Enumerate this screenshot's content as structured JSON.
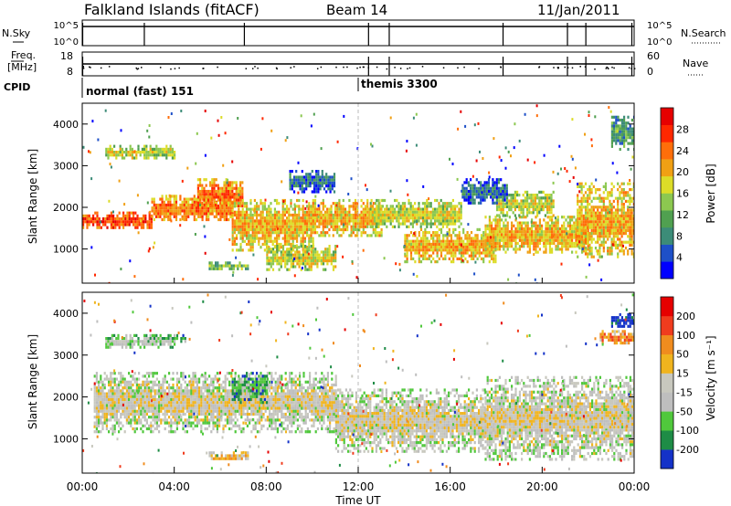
{
  "header": {
    "title": "Falkland Islands (fitACF)",
    "beam": "Beam 14",
    "date": "11/Jan/2011"
  },
  "side_labels": {
    "nsky": "N.Sky",
    "freq": "Freq.",
    "freq_unit": "[MHz]",
    "cpid": "CPID",
    "nsearch": "N.Search",
    "nave": "Nave"
  },
  "cpid_modes": [
    {
      "label": "normal (fast) 151",
      "start_hour": 0.0
    },
    {
      "label": "themis 3300",
      "start_hour": 12.0
    }
  ],
  "chart_data": [
    {
      "type": "line",
      "name": "noise_panel",
      "left_axis": {
        "ticks": [
          "10^5",
          "10^0"
        ]
      },
      "right_axis": {
        "ticks": [
          "10^5",
          "10^0"
        ]
      },
      "spikes_hours": [
        0.02,
        2.7,
        7.05,
        12.45,
        13.35,
        18.3,
        21.1,
        21.9,
        23.9
      ]
    },
    {
      "type": "scatter",
      "name": "freq_nave_panel",
      "left_axis": {
        "ticks": [
          "18",
          "8"
        ]
      },
      "right_axis": {
        "ticks": [
          "60",
          "0"
        ]
      },
      "spikes_hours": [
        0.02,
        12.45,
        13.35,
        18.3,
        21.1,
        21.9,
        23.9
      ]
    },
    {
      "type": "heatmap",
      "name": "power",
      "ylabel": "Slant Range [km]",
      "yticks": [
        1000,
        2000,
        3000,
        4000
      ],
      "ylim": [
        180,
        4500
      ],
      "xlim": [
        0,
        24
      ],
      "colorbar": {
        "label": "Power [dB]",
        "ticks": [
          "4",
          "8",
          "12",
          "16",
          "20",
          "24",
          "28"
        ],
        "colors": [
          "#0000ff",
          "#1e50c8",
          "#3c8c78",
          "#50a050",
          "#8cc850",
          "#dcdc28",
          "#f0a014",
          "#ff6e0a",
          "#ff2800",
          "#e60000"
        ]
      },
      "bands": [
        {
          "x": [
            0.0,
            3.0
          ],
          "y": [
            1500,
            1900
          ],
          "level": 8
        },
        {
          "x": [
            1.0,
            4.0
          ],
          "y": [
            3200,
            3500
          ],
          "level": 5
        },
        {
          "x": [
            3.0,
            6.5
          ],
          "y": [
            1700,
            2300
          ],
          "level": 7
        },
        {
          "x": [
            5.0,
            7.0
          ],
          "y": [
            2000,
            2700
          ],
          "level": 7
        },
        {
          "x": [
            6.5,
            10.0
          ],
          "y": [
            1000,
            2200
          ],
          "level": 6
        },
        {
          "x": [
            5.5,
            7.2
          ],
          "y": [
            500,
            700
          ],
          "level": 4
        },
        {
          "x": [
            8.0,
            11.0
          ],
          "y": [
            500,
            1100
          ],
          "level": 5
        },
        {
          "x": [
            10.0,
            13.0
          ],
          "y": [
            1300,
            2200
          ],
          "level": 6
        },
        {
          "x": [
            12.5,
            16.5
          ],
          "y": [
            1500,
            2200
          ],
          "level": 5
        },
        {
          "x": [
            14.0,
            18.0
          ],
          "y": [
            700,
            1500
          ],
          "level": 6
        },
        {
          "x": [
            17.5,
            22.0
          ],
          "y": [
            900,
            1800
          ],
          "level": 6
        },
        {
          "x": [
            18.0,
            20.5
          ],
          "y": [
            1800,
            2400
          ],
          "level": 5
        },
        {
          "x": [
            21.5,
            24.0
          ],
          "y": [
            800,
            2600
          ],
          "level": 6
        },
        {
          "x": [
            23.0,
            24.0
          ],
          "y": [
            3400,
            4200
          ],
          "level": 3
        },
        {
          "x": [
            16.5,
            18.5
          ],
          "y": [
            2100,
            2700
          ],
          "level": 2
        },
        {
          "x": [
            9.0,
            11.0
          ],
          "y": [
            2400,
            2900
          ],
          "level": 2
        }
      ]
    },
    {
      "type": "heatmap",
      "name": "velocity",
      "ylabel": "Slant Range [km]",
      "yticks": [
        1000,
        2000,
        3000,
        4000
      ],
      "ylim": [
        180,
        4500
      ],
      "xlim": [
        0,
        24
      ],
      "xticks": [
        "00:00",
        "04:00",
        "08:00",
        "12:00",
        "16:00",
        "20:00",
        "00:00"
      ],
      "xlabel": "Time UT",
      "colorbar": {
        "label": "Velocity [m s⁻¹]",
        "ticks": [
          "200",
          "100",
          "50",
          "15",
          "-15",
          "-50",
          "-100",
          "-200"
        ],
        "colors": [
          "#1432c8",
          "#1e8c46",
          "#50c83c",
          "#bebebe",
          "#c8c8be",
          "#f0b41e",
          "#f08c1e",
          "#f03c1e",
          "#e60000"
        ]
      },
      "bands": [
        {
          "x": [
            0.5,
            11.0
          ],
          "y": [
            1200,
            2600
          ],
          "level": 4
        },
        {
          "x": [
            11.0,
            17.5
          ],
          "y": [
            700,
            2200
          ],
          "level": 4
        },
        {
          "x": [
            17.5,
            24.0
          ],
          "y": [
            500,
            2500
          ],
          "level": 4
        },
        {
          "x": [
            6.5,
            8.0
          ],
          "y": [
            1900,
            2600
          ],
          "level": 2
        },
        {
          "x": [
            5.5,
            7.2
          ],
          "y": [
            500,
            700
          ],
          "level": 5
        },
        {
          "x": [
            1.0,
            4.0
          ],
          "y": [
            3200,
            3500
          ],
          "level": 3
        },
        {
          "x": [
            4.0,
            4.5
          ],
          "y": [
            3300,
            3500
          ],
          "level": 2
        },
        {
          "x": [
            23.0,
            24.0
          ],
          "y": [
            3700,
            4000
          ],
          "level": 0
        },
        {
          "x": [
            22.5,
            24.0
          ],
          "y": [
            3300,
            3600
          ],
          "level": 6
        }
      ]
    }
  ]
}
